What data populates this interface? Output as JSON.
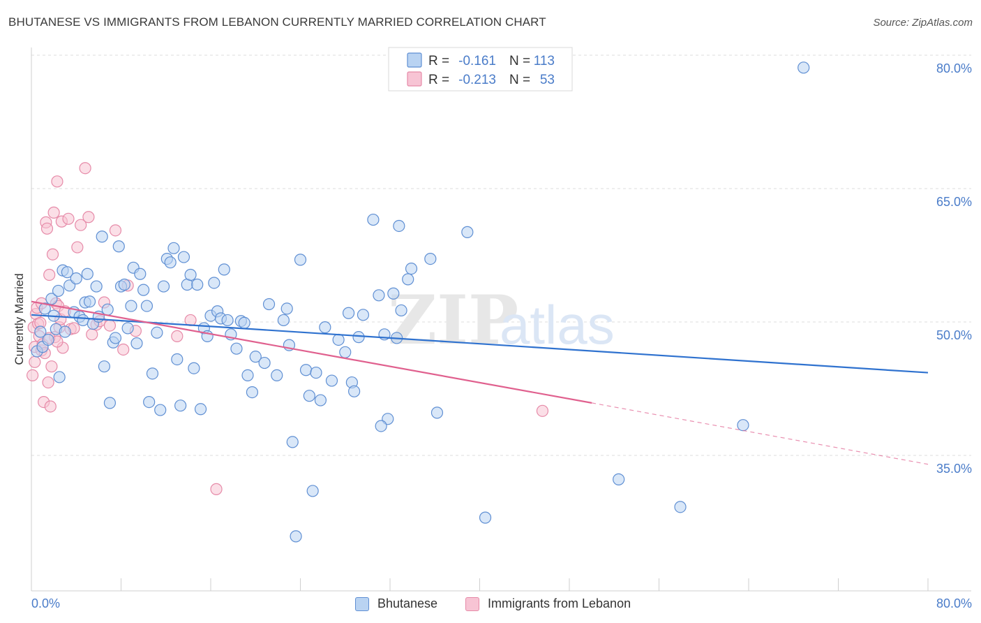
{
  "title": "BHUTANESE VS IMMIGRANTS FROM LEBANON CURRENTLY MARRIED CORRELATION CHART",
  "source": "Source: ZipAtlas.com",
  "watermark": {
    "zip": "ZIP",
    "atlas": "atlas"
  },
  "colors": {
    "blue_fill": "#b9d3f2",
    "blue_stroke": "#5f8fd3",
    "blue_line": "#2f72cf",
    "pink_fill": "#f7c4d4",
    "pink_stroke": "#e68aa8",
    "pink_line": "#e0608e",
    "tick_label": "#4a7cc9",
    "grid": "#dddddd"
  },
  "legend_top": {
    "rows": [
      {
        "r_label": "R = ",
        "r_value": "-0.161",
        "n_label": "N = ",
        "n_value": "113"
      },
      {
        "r_label": "R = ",
        "r_value": "-0.213",
        "n_label": "N = ",
        "n_value": "53"
      }
    ]
  },
  "chart_data": {
    "type": "scatter",
    "title": "BHUTANESE VS IMMIGRANTS FROM LEBANON CURRENTLY MARRIED CORRELATION CHART",
    "ylabel": "Currently Married",
    "xlabel": "",
    "xlim": [
      0,
      80
    ],
    "ylim": [
      20,
      82
    ],
    "x_tick_labels": [
      "0.0%",
      "80.0%"
    ],
    "y_ticks": [
      35,
      50,
      65,
      80
    ],
    "y_tick_labels": [
      "35.0%",
      "50.0%",
      "65.0%",
      "80.0%"
    ],
    "grid": true,
    "legend_position": "top-center",
    "series": [
      {
        "name": "Bhutanese",
        "r": -0.161,
        "n": 113,
        "trend": {
          "x": [
            0,
            80
          ],
          "y": [
            50.8,
            44.3
          ]
        },
        "points": [
          [
            0.5,
            46.7
          ],
          [
            0.8,
            48.9
          ],
          [
            1.0,
            47.2
          ],
          [
            1.2,
            51.5
          ],
          [
            1.5,
            48.0
          ],
          [
            1.8,
            52.6
          ],
          [
            2.2,
            49.2
          ],
          [
            2.4,
            53.5
          ],
          [
            2.0,
            50.7
          ],
          [
            2.5,
            43.8
          ],
          [
            2.8,
            55.8
          ],
          [
            3.0,
            48.9
          ],
          [
            3.2,
            55.6
          ],
          [
            3.4,
            54.1
          ],
          [
            3.8,
            51.1
          ],
          [
            4.0,
            54.9
          ],
          [
            4.3,
            50.6
          ],
          [
            4.6,
            50.2
          ],
          [
            4.8,
            52.2
          ],
          [
            5.0,
            55.4
          ],
          [
            5.2,
            52.3
          ],
          [
            5.5,
            49.8
          ],
          [
            5.8,
            54.0
          ],
          [
            6.0,
            50.6
          ],
          [
            6.3,
            59.6
          ],
          [
            6.5,
            45.0
          ],
          [
            6.8,
            51.4
          ],
          [
            7.0,
            40.9
          ],
          [
            7.3,
            47.7
          ],
          [
            7.5,
            48.2
          ],
          [
            7.8,
            58.5
          ],
          [
            8.0,
            54.0
          ],
          [
            8.3,
            54.2
          ],
          [
            8.6,
            49.3
          ],
          [
            8.9,
            51.8
          ],
          [
            9.1,
            56.1
          ],
          [
            9.4,
            47.6
          ],
          [
            9.7,
            55.4
          ],
          [
            10.0,
            53.6
          ],
          [
            10.3,
            51.8
          ],
          [
            10.5,
            41.0
          ],
          [
            10.8,
            44.2
          ],
          [
            11.2,
            48.8
          ],
          [
            11.5,
            40.1
          ],
          [
            11.8,
            54.0
          ],
          [
            12.1,
            57.1
          ],
          [
            12.4,
            56.7
          ],
          [
            12.7,
            58.3
          ],
          [
            13.0,
            45.8
          ],
          [
            13.3,
            40.6
          ],
          [
            13.6,
            57.3
          ],
          [
            13.9,
            54.2
          ],
          [
            14.2,
            55.3
          ],
          [
            14.5,
            44.8
          ],
          [
            14.8,
            54.2
          ],
          [
            15.1,
            40.2
          ],
          [
            15.4,
            49.3
          ],
          [
            15.7,
            48.4
          ],
          [
            16.0,
            50.7
          ],
          [
            16.3,
            54.4
          ],
          [
            16.6,
            51.2
          ],
          [
            16.9,
            50.4
          ],
          [
            17.2,
            55.9
          ],
          [
            17.5,
            50.2
          ],
          [
            17.8,
            48.6
          ],
          [
            18.3,
            47.0
          ],
          [
            18.7,
            50.1
          ],
          [
            19.0,
            49.9
          ],
          [
            19.3,
            44.0
          ],
          [
            19.7,
            42.1
          ],
          [
            20.0,
            46.1
          ],
          [
            20.8,
            45.4
          ],
          [
            21.2,
            52.0
          ],
          [
            21.9,
            44.0
          ],
          [
            22.5,
            50.2
          ],
          [
            22.8,
            51.5
          ],
          [
            23.0,
            47.4
          ],
          [
            23.3,
            36.5
          ],
          [
            24.0,
            57.0
          ],
          [
            24.5,
            44.6
          ],
          [
            24.8,
            41.7
          ],
          [
            25.1,
            31.0
          ],
          [
            25.4,
            44.3
          ],
          [
            25.8,
            41.2
          ],
          [
            26.2,
            49.4
          ],
          [
            26.8,
            43.4
          ],
          [
            27.4,
            48.0
          ],
          [
            28.0,
            46.6
          ],
          [
            28.3,
            51.0
          ],
          [
            28.6,
            43.2
          ],
          [
            28.8,
            42.2
          ],
          [
            29.2,
            48.3
          ],
          [
            29.6,
            50.8
          ],
          [
            30.5,
            61.5
          ],
          [
            31.0,
            53.0
          ],
          [
            31.5,
            48.6
          ],
          [
            31.8,
            39.1
          ],
          [
            32.3,
            53.2
          ],
          [
            32.6,
            48.2
          ],
          [
            32.8,
            60.8
          ],
          [
            33.0,
            51.3
          ],
          [
            33.6,
            54.8
          ],
          [
            33.9,
            56.0
          ],
          [
            35.6,
            57.1
          ],
          [
            36.2,
            39.8
          ],
          [
            38.9,
            60.1
          ],
          [
            40.5,
            28.0
          ],
          [
            23.6,
            25.9
          ],
          [
            52.4,
            32.3
          ],
          [
            57.9,
            29.2
          ],
          [
            63.5,
            38.4
          ],
          [
            68.9,
            78.6
          ],
          [
            31.2,
            38.3
          ]
        ]
      },
      {
        "name": "Immigrants from Lebanon",
        "r": -0.213,
        "n": 53,
        "trend": {
          "x": [
            0,
            50
          ],
          "y": [
            52.3,
            40.9
          ]
        },
        "dashed_extension": {
          "x": [
            50,
            80
          ],
          "y": [
            40.9,
            34.0
          ]
        },
        "points": [
          [
            0.1,
            44.0
          ],
          [
            0.2,
            49.4
          ],
          [
            0.3,
            47.2
          ],
          [
            0.4,
            50.9
          ],
          [
            0.5,
            51.6
          ],
          [
            0.6,
            49.8
          ],
          [
            0.7,
            48.4
          ],
          [
            0.8,
            49.9
          ],
          [
            0.9,
            46.8
          ],
          [
            1.0,
            47.5
          ],
          [
            1.1,
            41.0
          ],
          [
            1.2,
            46.5
          ],
          [
            1.3,
            61.2
          ],
          [
            1.4,
            60.5
          ],
          [
            1.5,
            43.2
          ],
          [
            1.6,
            55.3
          ],
          [
            1.7,
            40.5
          ],
          [
            1.8,
            45.0
          ],
          [
            1.9,
            57.6
          ],
          [
            2.0,
            62.3
          ],
          [
            2.1,
            48.3
          ],
          [
            2.2,
            52.1
          ],
          [
            2.3,
            65.8
          ],
          [
            2.4,
            51.8
          ],
          [
            2.5,
            49.4
          ],
          [
            2.6,
            50.3
          ],
          [
            2.7,
            61.3
          ],
          [
            2.8,
            47.1
          ],
          [
            3.0,
            51.2
          ],
          [
            3.3,
            61.6
          ],
          [
            3.5,
            49.2
          ],
          [
            3.8,
            49.3
          ],
          [
            4.1,
            58.4
          ],
          [
            4.4,
            60.9
          ],
          [
            4.8,
            67.3
          ],
          [
            5.1,
            61.8
          ],
          [
            5.4,
            48.6
          ],
          [
            5.8,
            49.7
          ],
          [
            6.1,
            50.1
          ],
          [
            6.5,
            52.2
          ],
          [
            7.0,
            49.6
          ],
          [
            7.5,
            60.3
          ],
          [
            8.2,
            46.9
          ],
          [
            8.6,
            54.1
          ],
          [
            9.3,
            49.0
          ],
          [
            13.0,
            48.4
          ],
          [
            14.2,
            50.2
          ],
          [
            16.5,
            31.2
          ],
          [
            45.6,
            40.0
          ],
          [
            0.9,
            52.1
          ],
          [
            1.6,
            48.2
          ],
          [
            2.3,
            47.8
          ],
          [
            0.3,
            45.5
          ]
        ]
      }
    ]
  },
  "legend_bottom": [
    {
      "label": "Bhutanese"
    },
    {
      "label": "Immigrants from Lebanon"
    }
  ]
}
